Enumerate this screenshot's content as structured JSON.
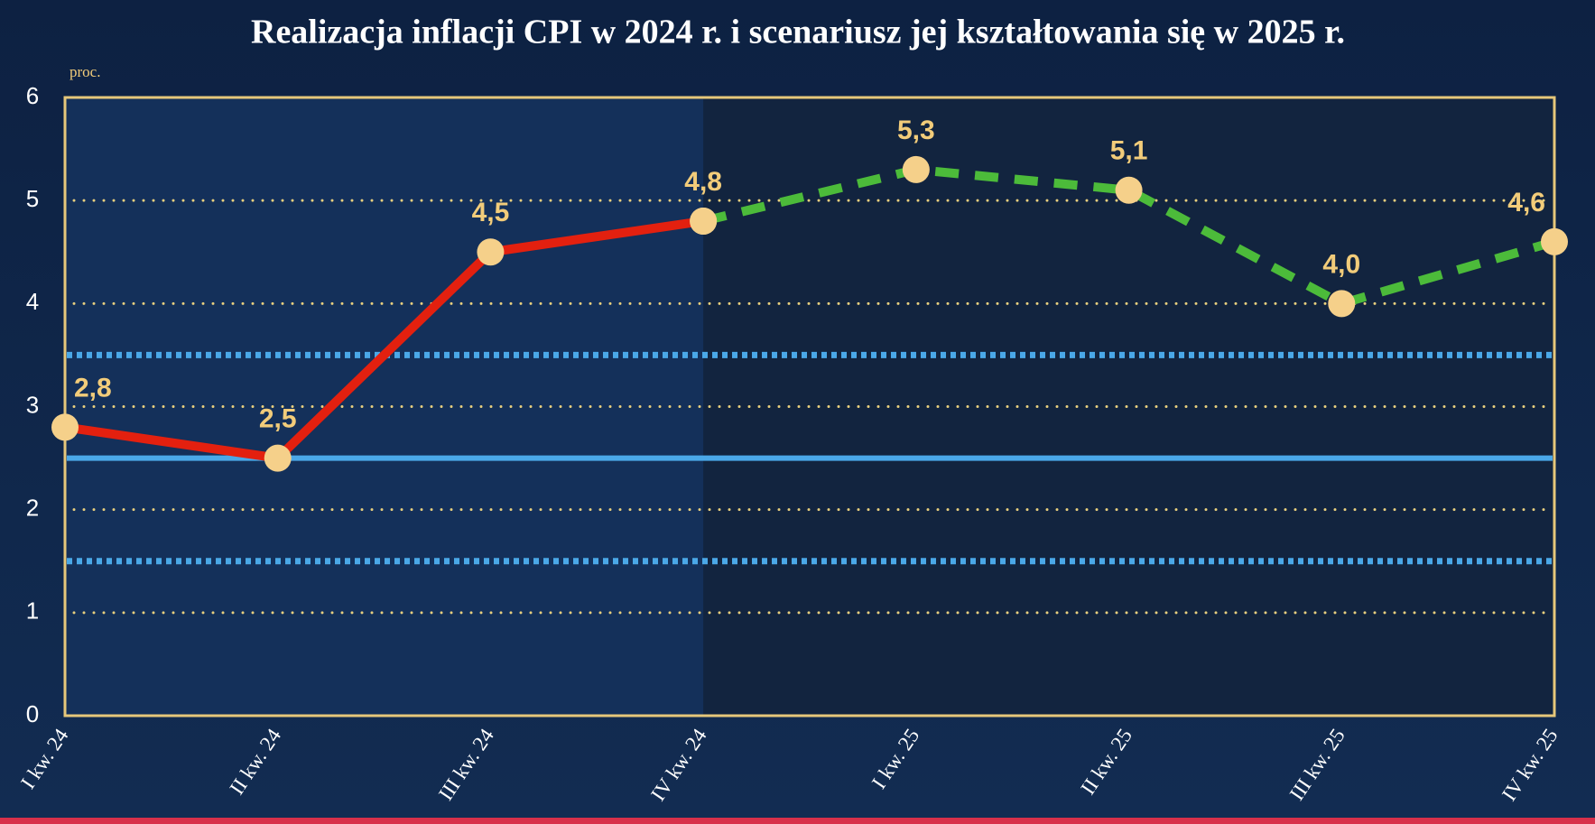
{
  "chart_data": {
    "type": "line",
    "title": "Realizacja inflacji CPI w 2024 r. i scenariusz jej kształtowania się w 2025 r.",
    "y_label": "proc.",
    "categories": [
      "I kw. 24",
      "II kw. 24",
      "III kw. 24",
      "IV kw. 24",
      "I kw. 25",
      "II kw. 25",
      "III kw. 25",
      "IV kw. 25"
    ],
    "series": [
      {
        "color": "#e3200f",
        "style": "solid",
        "values": [
          2.8,
          2.5,
          4.5,
          4.8,
          null,
          null,
          null,
          null
        ],
        "value_labels": [
          "2,8",
          "2,5",
          "4,5",
          "4,8",
          null,
          null,
          null,
          null
        ]
      },
      {
        "color": "#4cbb3a",
        "style": "dashed",
        "values": [
          null,
          null,
          null,
          4.8,
          5.3,
          5.1,
          4.0,
          4.6
        ],
        "value_labels": [
          null,
          null,
          null,
          null,
          "5,3",
          "5,1",
          "4,0",
          "4,6"
        ]
      }
    ],
    "reference_lines": [
      {
        "value": 2.5,
        "style": "solid",
        "color": "#4aa8e8"
      },
      {
        "value": 1.5,
        "style": "dotted",
        "color": "#4aa8e8"
      },
      {
        "value": 3.5,
        "style": "dotted",
        "color": "#4aa8e8"
      }
    ],
    "ylim": [
      0,
      6
    ],
    "yticks": [
      0,
      1,
      2,
      3,
      4,
      5,
      6
    ],
    "grid": true
  }
}
